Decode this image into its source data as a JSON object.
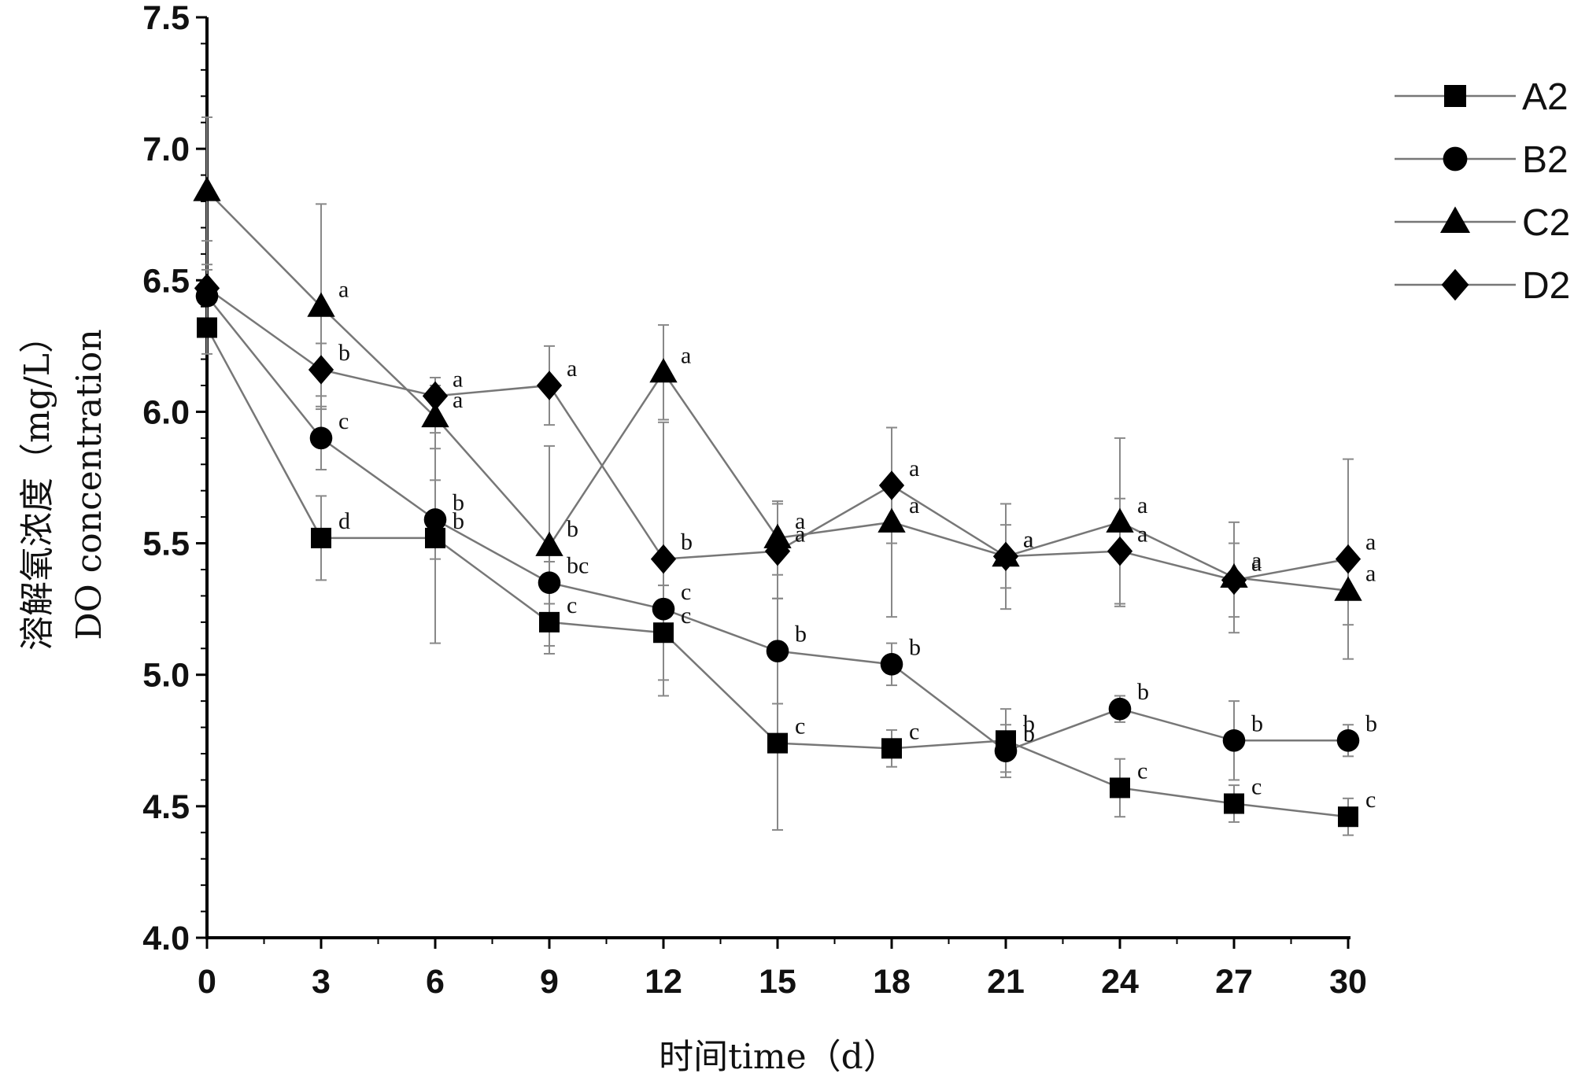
{
  "chart_data": {
    "type": "line",
    "title": "",
    "xlabel": "时间time（d）",
    "ylabel": [
      "溶解氧浓度（mg/L）",
      "DO concentration"
    ],
    "xlim": [
      0,
      30
    ],
    "ylim": [
      4.0,
      7.5
    ],
    "x_ticks": [
      "0",
      "3",
      "6",
      "9",
      "12",
      "15",
      "18",
      "21",
      "24",
      "27",
      "30"
    ],
    "y_ticks": [
      "4.0",
      "4.5",
      "5.0",
      "5.5",
      "6.0",
      "6.5",
      "7.0",
      "7.5"
    ],
    "x": [
      0,
      3,
      6,
      9,
      12,
      15,
      18,
      21,
      24,
      27,
      30
    ],
    "grid": false,
    "legend_position": "top-right",
    "series": [
      {
        "name": "A2",
        "marker": "square",
        "values": [
          6.32,
          5.52,
          5.52,
          5.2,
          5.16,
          4.74,
          4.72,
          4.75,
          4.57,
          4.51,
          4.46
        ],
        "errors": [
          0.1,
          0.16,
          0.4,
          0.12,
          0.18,
          0.33,
          0.07,
          0.12,
          0.11,
          0.07,
          0.07
        ],
        "labels": [
          "",
          "d",
          "b",
          "c",
          "c",
          "c",
          "c",
          "b",
          "c",
          "c",
          "c"
        ]
      },
      {
        "name": "B2",
        "marker": "circle",
        "values": [
          6.44,
          5.9,
          5.59,
          5.35,
          5.25,
          5.09,
          5.04,
          4.71,
          4.87,
          4.75,
          4.75
        ],
        "errors": [
          0.1,
          0.12,
          0.15,
          0.08,
          0.09,
          0.2,
          0.08,
          0.1,
          0.05,
          0.15,
          0.06
        ],
        "labels": [
          "",
          "c",
          "b",
          "bc",
          "c",
          "b",
          "b",
          "b",
          "b",
          "b",
          "b"
        ]
      },
      {
        "name": "C2",
        "marker": "triangle",
        "values": [
          6.84,
          6.4,
          5.98,
          5.49,
          6.15,
          5.52,
          5.58,
          5.45,
          5.58,
          5.37,
          5.32
        ],
        "errors": [
          0.28,
          0.39,
          0.12,
          0.38,
          0.18,
          0.14,
          0.36,
          0.2,
          0.32,
          0.21,
          0.13
        ],
        "labels": [
          "",
          "a",
          "a",
          "b",
          "a",
          "a",
          "a",
          "a",
          "a",
          "a",
          "a"
        ]
      },
      {
        "name": "D2",
        "marker": "diamond",
        "values": [
          6.47,
          6.16,
          6.06,
          6.1,
          5.44,
          5.47,
          5.72,
          5.45,
          5.47,
          5.36,
          5.44
        ],
        "errors": [
          0.18,
          0.1,
          0.07,
          0.15,
          0.52,
          0.18,
          0.22,
          0.12,
          0.2,
          0.14,
          0.38
        ],
        "labels": [
          "",
          "b",
          "a",
          "a",
          "b",
          "a",
          "a",
          "a",
          "a",
          "a",
          "a"
        ]
      }
    ],
    "colors": {
      "line": "#777777",
      "marker": "#000000",
      "axis": "#000000",
      "errorbar": "#888888"
    }
  }
}
